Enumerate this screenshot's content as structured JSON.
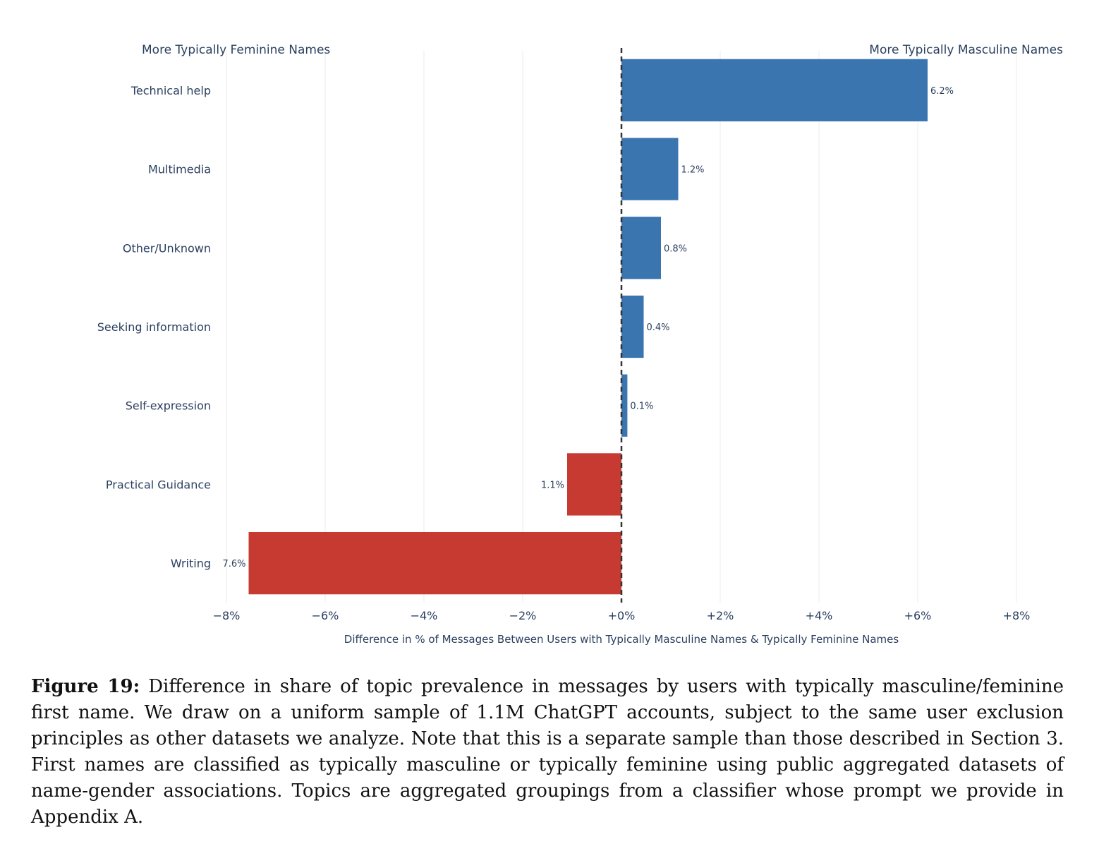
{
  "chart_data": {
    "type": "bar",
    "orientation": "horizontal",
    "corner_labels": {
      "left": "More Typically Feminine Names",
      "right": "More Typically Masculine Names"
    },
    "xlabel": "Difference in % of Messages Between Users with Typically Masculine Names & Typically Feminine Names",
    "xlim": [
      -8,
      8
    ],
    "xticks": [
      {
        "value": -8,
        "label": "−8%"
      },
      {
        "value": -6,
        "label": "−6%"
      },
      {
        "value": -4,
        "label": "−4%"
      },
      {
        "value": -2,
        "label": "−2%"
      },
      {
        "value": 0,
        "label": "+0%"
      },
      {
        "value": 2,
        "label": "+2%"
      },
      {
        "value": 4,
        "label": "+4%"
      },
      {
        "value": 6,
        "label": "+6%"
      },
      {
        "value": 8,
        "label": "+8%"
      }
    ],
    "grid": true,
    "zero_line": "dashed",
    "categories": [
      "Technical help",
      "Multimedia",
      "Other/Unknown",
      "Seeking information",
      "Self-expression",
      "Practical Guidance",
      "Writing"
    ],
    "values": [
      6.2,
      1.15,
      0.8,
      0.45,
      0.12,
      -1.1,
      -7.55
    ],
    "data_labels": [
      "6.2%",
      "1.2%",
      "0.8%",
      "0.4%",
      "0.1%",
      "1.1%",
      "7.6%"
    ],
    "colors": {
      "positive": "#3a75b0",
      "negative": "#c63a32"
    }
  },
  "caption": {
    "label": "Figure 19:",
    "text": " Difference in share of topic prevalence in messages by users with typically masculine/feminine first name. We draw on a uniform sample of 1.1M ChatGPT accounts, subject to the same user exclusion principles as other datasets we analyze. Note that this is a separate sample than those described in Section 3. First names are classified as typically masculine or typically feminine using public aggregated datasets of name-gender associations. Topics are aggregated groupings from a classifier whose prompt we provide in Appendix A."
  }
}
